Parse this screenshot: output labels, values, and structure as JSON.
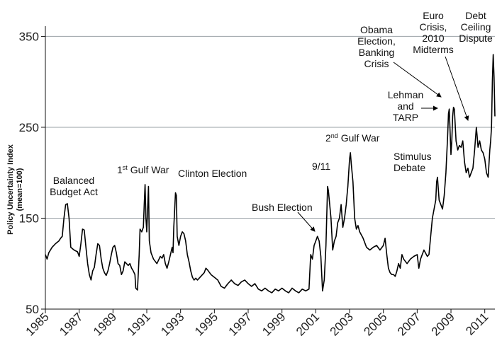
{
  "chart_data": {
    "type": "line",
    "title": "",
    "xlabel": "",
    "ylabel_line1": "Policy Uncertainty Index",
    "ylabel_line2": "(mean=100)",
    "xlim": [
      1985,
      2011.6
    ],
    "ylim": [
      50,
      355
    ],
    "yticks": [
      50,
      150,
      250,
      350
    ],
    "xticks": [
      1985,
      1987,
      1989,
      1991,
      1993,
      1995,
      1997,
      1999,
      2001,
      2003,
      2005,
      2007,
      2009,
      2011
    ],
    "grid": true,
    "series": [
      {
        "name": "Policy Uncertainty Index",
        "points": [
          [
            1985.0,
            110
          ],
          [
            1985.1,
            105
          ],
          [
            1985.2,
            112
          ],
          [
            1985.4,
            118
          ],
          [
            1985.6,
            122
          ],
          [
            1985.8,
            125
          ],
          [
            1985.9,
            128
          ],
          [
            1986.0,
            130
          ],
          [
            1986.1,
            150
          ],
          [
            1986.2,
            165
          ],
          [
            1986.3,
            166
          ],
          [
            1986.4,
            150
          ],
          [
            1986.5,
            118
          ],
          [
            1986.7,
            115
          ],
          [
            1986.9,
            113
          ],
          [
            1987.0,
            108
          ],
          [
            1987.1,
            122
          ],
          [
            1987.2,
            138
          ],
          [
            1987.3,
            137
          ],
          [
            1987.4,
            118
          ],
          [
            1987.5,
            100
          ],
          [
            1987.6,
            88
          ],
          [
            1987.7,
            82
          ],
          [
            1987.8,
            92
          ],
          [
            1987.9,
            96
          ],
          [
            1988.0,
            110
          ],
          [
            1988.1,
            122
          ],
          [
            1988.2,
            120
          ],
          [
            1988.3,
            105
          ],
          [
            1988.4,
            95
          ],
          [
            1988.5,
            90
          ],
          [
            1988.6,
            87
          ],
          [
            1988.7,
            92
          ],
          [
            1988.8,
            100
          ],
          [
            1988.9,
            110
          ],
          [
            1989.0,
            118
          ],
          [
            1989.1,
            120
          ],
          [
            1989.2,
            112
          ],
          [
            1989.3,
            100
          ],
          [
            1989.4,
            98
          ],
          [
            1989.5,
            88
          ],
          [
            1989.6,
            92
          ],
          [
            1989.7,
            102
          ],
          [
            1989.8,
            100
          ],
          [
            1989.9,
            98
          ],
          [
            1990.0,
            100
          ],
          [
            1990.1,
            95
          ],
          [
            1990.2,
            92
          ],
          [
            1990.3,
            88
          ],
          [
            1990.35,
            73
          ],
          [
            1990.45,
            71
          ],
          [
            1990.55,
            110
          ],
          [
            1990.6,
            138
          ],
          [
            1990.7,
            135
          ],
          [
            1990.8,
            140
          ],
          [
            1990.85,
            165
          ],
          [
            1990.9,
            187
          ],
          [
            1990.95,
            150
          ],
          [
            1991.0,
            135
          ],
          [
            1991.05,
            160
          ],
          [
            1991.1,
            185
          ],
          [
            1991.15,
            125
          ],
          [
            1991.25,
            112
          ],
          [
            1991.4,
            105
          ],
          [
            1991.6,
            100
          ],
          [
            1991.8,
            108
          ],
          [
            1991.9,
            106
          ],
          [
            1992.0,
            110
          ],
          [
            1992.1,
            100
          ],
          [
            1992.2,
            95
          ],
          [
            1992.3,
            102
          ],
          [
            1992.4,
            110
          ],
          [
            1992.5,
            118
          ],
          [
            1992.55,
            112
          ],
          [
            1992.6,
            140
          ],
          [
            1992.7,
            178
          ],
          [
            1992.75,
            175
          ],
          [
            1992.8,
            130
          ],
          [
            1992.9,
            120
          ],
          [
            1993.0,
            130
          ],
          [
            1993.1,
            135
          ],
          [
            1993.2,
            133
          ],
          [
            1993.3,
            125
          ],
          [
            1993.4,
            110
          ],
          [
            1993.5,
            102
          ],
          [
            1993.6,
            92
          ],
          [
            1993.7,
            85
          ],
          [
            1993.8,
            82
          ],
          [
            1993.9,
            84
          ],
          [
            1994.0,
            82
          ],
          [
            1994.2,
            86
          ],
          [
            1994.4,
            90
          ],
          [
            1994.5,
            95
          ],
          [
            1994.6,
            93
          ],
          [
            1994.8,
            88
          ],
          [
            1995.0,
            85
          ],
          [
            1995.2,
            82
          ],
          [
            1995.4,
            75
          ],
          [
            1995.6,
            73
          ],
          [
            1995.8,
            78
          ],
          [
            1996.0,
            82
          ],
          [
            1996.2,
            78
          ],
          [
            1996.4,
            76
          ],
          [
            1996.6,
            80
          ],
          [
            1996.8,
            82
          ],
          [
            1997.0,
            78
          ],
          [
            1997.2,
            75
          ],
          [
            1997.4,
            78
          ],
          [
            1997.6,
            72
          ],
          [
            1997.8,
            70
          ],
          [
            1998.0,
            73
          ],
          [
            1998.2,
            70
          ],
          [
            1998.4,
            68
          ],
          [
            1998.6,
            72
          ],
          [
            1998.8,
            70
          ],
          [
            1999.0,
            73
          ],
          [
            1999.2,
            70
          ],
          [
            1999.4,
            68
          ],
          [
            1999.6,
            73
          ],
          [
            1999.8,
            70
          ],
          [
            2000.0,
            68
          ],
          [
            2000.2,
            72
          ],
          [
            2000.4,
            70
          ],
          [
            2000.6,
            72
          ],
          [
            2000.7,
            110
          ],
          [
            2000.8,
            105
          ],
          [
            2000.9,
            120
          ],
          [
            2001.0,
            125
          ],
          [
            2001.1,
            130
          ],
          [
            2001.2,
            125
          ],
          [
            2001.3,
            108
          ],
          [
            2001.4,
            70
          ],
          [
            2001.5,
            82
          ],
          [
            2001.6,
            120
          ],
          [
            2001.7,
            185
          ],
          [
            2001.75,
            180
          ],
          [
            2001.8,
            170
          ],
          [
            2001.9,
            150
          ],
          [
            2002.0,
            115
          ],
          [
            2002.1,
            125
          ],
          [
            2002.2,
            130
          ],
          [
            2002.3,
            145
          ],
          [
            2002.4,
            150
          ],
          [
            2002.5,
            165
          ],
          [
            2002.6,
            140
          ],
          [
            2002.7,
            150
          ],
          [
            2002.8,
            165
          ],
          [
            2002.85,
            175
          ],
          [
            2002.9,
            185
          ],
          [
            2003.0,
            215
          ],
          [
            2003.05,
            222
          ],
          [
            2003.1,
            210
          ],
          [
            2003.2,
            190
          ],
          [
            2003.3,
            150
          ],
          [
            2003.4,
            138
          ],
          [
            2003.5,
            142
          ],
          [
            2003.6,
            135
          ],
          [
            2003.8,
            128
          ],
          [
            2004.0,
            118
          ],
          [
            2004.2,
            115
          ],
          [
            2004.4,
            118
          ],
          [
            2004.6,
            120
          ],
          [
            2004.8,
            115
          ],
          [
            2005.0,
            120
          ],
          [
            2005.1,
            128
          ],
          [
            2005.2,
            110
          ],
          [
            2005.3,
            95
          ],
          [
            2005.4,
            90
          ],
          [
            2005.5,
            88
          ],
          [
            2005.6,
            88
          ],
          [
            2005.7,
            86
          ],
          [
            2005.8,
            92
          ],
          [
            2005.9,
            100
          ],
          [
            2006.0,
            95
          ],
          [
            2006.1,
            110
          ],
          [
            2006.2,
            105
          ],
          [
            2006.4,
            100
          ],
          [
            2006.6,
            105
          ],
          [
            2006.8,
            108
          ],
          [
            2007.0,
            110
          ],
          [
            2007.1,
            95
          ],
          [
            2007.2,
            105
          ],
          [
            2007.4,
            115
          ],
          [
            2007.6,
            108
          ],
          [
            2007.7,
            110
          ],
          [
            2007.8,
            130
          ],
          [
            2007.9,
            150
          ],
          [
            2008.0,
            160
          ],
          [
            2008.1,
            170
          ],
          [
            2008.15,
            190
          ],
          [
            2008.2,
            195
          ],
          [
            2008.3,
            170
          ],
          [
            2008.4,
            165
          ],
          [
            2008.5,
            160
          ],
          [
            2008.6,
            175
          ],
          [
            2008.7,
            200
          ],
          [
            2008.8,
            240
          ],
          [
            2008.85,
            265
          ],
          [
            2008.9,
            270
          ],
          [
            2008.95,
            245
          ],
          [
            2009.0,
            220
          ],
          [
            2009.05,
            235
          ],
          [
            2009.1,
            262
          ],
          [
            2009.15,
            272
          ],
          [
            2009.2,
            270
          ],
          [
            2009.3,
            235
          ],
          [
            2009.4,
            225
          ],
          [
            2009.5,
            230
          ],
          [
            2009.6,
            228
          ],
          [
            2009.7,
            235
          ],
          [
            2009.8,
            212
          ],
          [
            2009.9,
            200
          ],
          [
            2010.0,
            205
          ],
          [
            2010.1,
            195
          ],
          [
            2010.2,
            200
          ],
          [
            2010.3,
            205
          ],
          [
            2010.4,
            225
          ],
          [
            2010.5,
            250
          ],
          [
            2010.55,
            240
          ],
          [
            2010.6,
            228
          ],
          [
            2010.7,
            235
          ],
          [
            2010.8,
            225
          ],
          [
            2010.9,
            222
          ],
          [
            2011.0,
            215
          ],
          [
            2011.1,
            200
          ],
          [
            2011.2,
            195
          ],
          [
            2011.3,
            225
          ],
          [
            2011.35,
            235
          ],
          [
            2011.4,
            250
          ],
          [
            2011.45,
            300
          ],
          [
            2011.5,
            330
          ],
          [
            2011.55,
            305
          ],
          [
            2011.6,
            262
          ]
        ]
      }
    ],
    "annotations": [
      {
        "id": "balanced-budget",
        "lines": [
          "Balanced",
          "Budget Act"
        ]
      },
      {
        "id": "gulf-war-1",
        "lines": [
          "1st Gulf War"
        ]
      },
      {
        "id": "clinton-election",
        "lines": [
          "Clinton Election"
        ]
      },
      {
        "id": "bush-election",
        "lines": [
          "Bush Election"
        ]
      },
      {
        "id": "nine-eleven",
        "lines": [
          "9/11"
        ]
      },
      {
        "id": "gulf-war-2",
        "lines": [
          "2nd Gulf War"
        ]
      },
      {
        "id": "stimulus",
        "lines": [
          "Stimulus",
          "Debate"
        ]
      },
      {
        "id": "lehman",
        "lines": [
          "Lehman",
          "and",
          "TARP"
        ]
      },
      {
        "id": "obama",
        "lines": [
          "Obama",
          "Election,",
          "Banking",
          "Crisis"
        ]
      },
      {
        "id": "euro",
        "lines": [
          "Euro",
          "Crisis,",
          "2010",
          "Midterms"
        ]
      },
      {
        "id": "debt-ceiling",
        "lines": [
          "Debt",
          "Ceiling",
          "Dispute"
        ]
      }
    ]
  },
  "colors": {
    "line": "#000000",
    "grid": "#9aa0a6",
    "axis": "#111111",
    "background": "#ffffff"
  }
}
